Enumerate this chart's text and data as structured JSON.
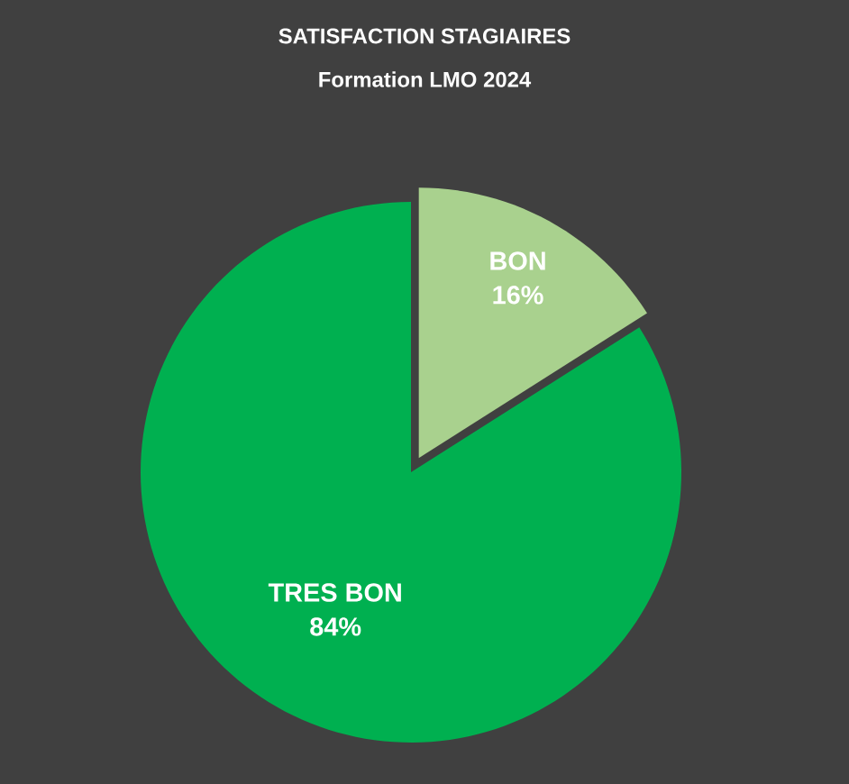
{
  "chart_data": {
    "type": "pie",
    "title": "SATISFACTION STAGIAIRES",
    "subtitle": "Formation LMO 2024",
    "categories": [
      "BON",
      "TRES BON"
    ],
    "values": [
      16,
      84
    ],
    "value_labels": [
      "16%",
      "84%"
    ],
    "colors": [
      "#a9d18e",
      "#00b050"
    ]
  }
}
